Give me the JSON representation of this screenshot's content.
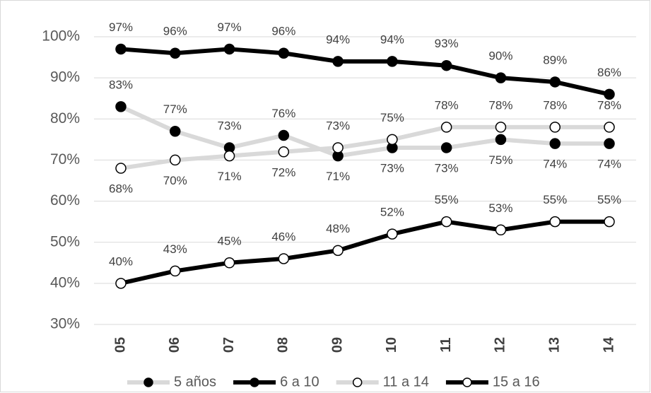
{
  "chart_data": {
    "type": "line",
    "categories": [
      "05",
      "06",
      "07",
      "08",
      "09",
      "10",
      "11",
      "12",
      "13",
      "14"
    ],
    "series": [
      {
        "name": "5 años",
        "color": "#d9d9d9",
        "marker_fill": "#000000",
        "values": [
          83,
          77,
          73,
          76,
          71,
          73,
          73,
          75,
          74,
          74
        ],
        "value_labels": [
          "83%",
          "77%",
          "73%",
          "76%",
          "71%",
          "73%",
          "73%",
          "75%",
          "74%",
          "74%"
        ]
      },
      {
        "name": "6 a 10",
        "color": "#000000",
        "marker_fill": "#000000",
        "values": [
          97,
          96,
          97,
          96,
          94,
          94,
          93,
          90,
          89,
          86
        ],
        "value_labels": [
          "97%",
          "96%",
          "97%",
          "96%",
          "94%",
          "94%",
          "93%",
          "90%",
          "89%",
          "86%"
        ]
      },
      {
        "name": "11 a 14",
        "color": "#d9d9d9",
        "marker_fill": "#ffffff",
        "values": [
          68,
          70,
          71,
          72,
          73,
          75,
          78,
          78,
          78,
          78
        ],
        "value_labels": [
          "68%",
          "70%",
          "71%",
          "72%",
          "73%",
          "75%",
          "78%",
          "78%",
          "78%",
          "78%"
        ]
      },
      {
        "name": "15 a 16",
        "color": "#000000",
        "marker_fill": "#ffffff",
        "values": [
          40,
          43,
          45,
          46,
          48,
          52,
          55,
          53,
          55,
          55
        ],
        "value_labels": [
          "40%",
          "43%",
          "45%",
          "46%",
          "48%",
          "52%",
          "55%",
          "53%",
          "55%",
          "55%"
        ]
      }
    ],
    "ylim": [
      30,
      100
    ],
    "yticks": [
      {
        "value": 30,
        "label": "30%"
      },
      {
        "value": 40,
        "label": "40%"
      },
      {
        "value": 50,
        "label": "50%"
      },
      {
        "value": 60,
        "label": "60%"
      },
      {
        "value": 70,
        "label": "70%"
      },
      {
        "value": 80,
        "label": "80%"
      },
      {
        "value": 90,
        "label": "90%"
      },
      {
        "value": 100,
        "label": "100%"
      }
    ],
    "grid": true,
    "legend": "bottom"
  }
}
